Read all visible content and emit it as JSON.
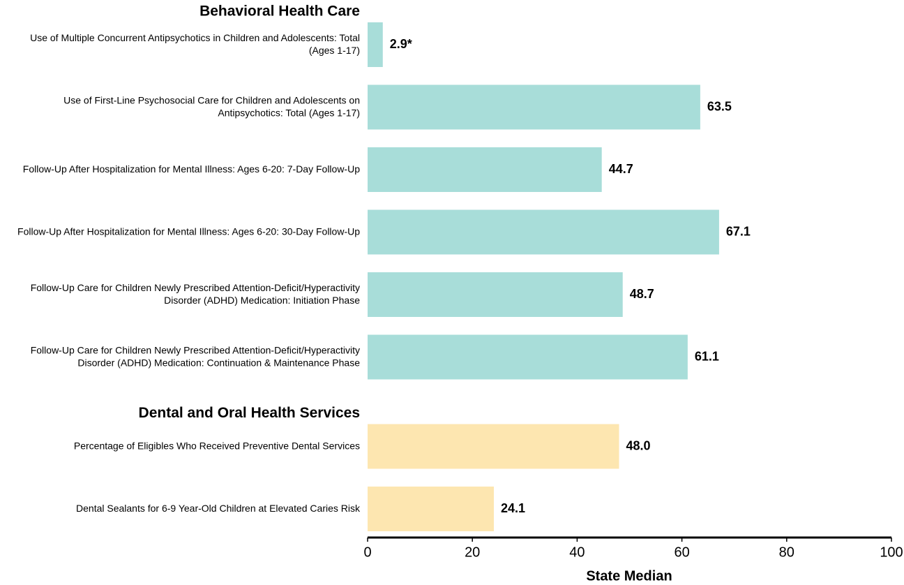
{
  "chart_data": {
    "type": "bar",
    "orientation": "horizontal",
    "groups": [
      {
        "name": "Behavioral Health Care",
        "color": "#a8ddd9",
        "categories": [
          "Use of Multiple Concurrent Antipsychotics in Children and Adolescents: Total (Ages 1-17)",
          "Use of First-Line Psychosocial Care for Children and Adolescents on Antipsychotics: Total (Ages 1-17)",
          "Follow-Up After Hospitalization for Mental Illness: Ages 6-20: 7-Day Follow-Up",
          "Follow-Up After Hospitalization for Mental Illness: Ages 6-20: 30-Day Follow-Up",
          "Follow-Up Care for Children Newly Prescribed Attention-Deficit/Hyperactivity Disorder (ADHD) Medication: Initiation Phase",
          "Follow-Up Care for Children Newly Prescribed Attention-Deficit/Hyperactivity Disorder (ADHD) Medication: Continuation & Maintenance Phase"
        ],
        "values": [
          2.9,
          63.5,
          44.7,
          67.1,
          48.7,
          61.1
        ],
        "value_labels": [
          "2.9*",
          "63.5",
          "44.7",
          "67.1",
          "48.7",
          "61.1"
        ]
      },
      {
        "name": "Dental and Oral Health Services",
        "color": "#fde6b0",
        "categories": [
          "Percentage of Eligibles Who Received Preventive Dental Services",
          "Dental Sealants for 6-9 Year-Old Children at Elevated Caries Risk"
        ],
        "values": [
          48.0,
          24.1
        ],
        "value_labels": [
          "48.0",
          "24.1"
        ]
      }
    ],
    "xlabel": "State Median",
    "xlim": [
      0,
      100
    ],
    "xticks": [
      0,
      20,
      40,
      60,
      80,
      100
    ],
    "grid": false
  }
}
